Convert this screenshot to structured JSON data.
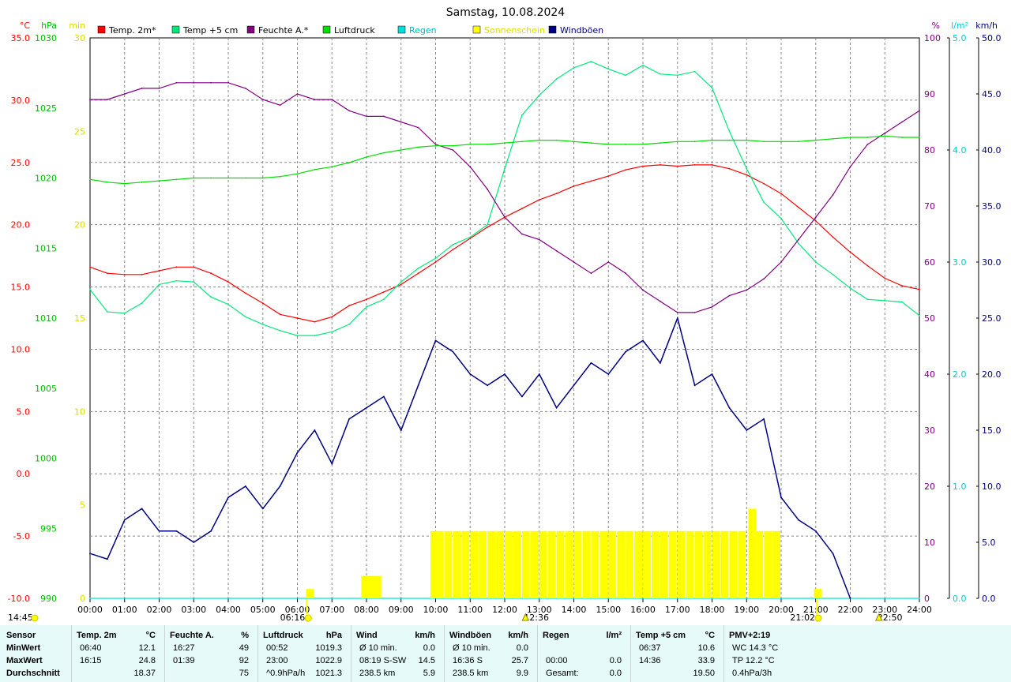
{
  "title": "Samstag, 10.08.2024",
  "legend": [
    {
      "label": "Temp. 2m*",
      "color": "#ff0000"
    },
    {
      "label": "Temp +5 cm",
      "color": "#00e87a"
    },
    {
      "label": "Feuchte A.*",
      "color": "#800080"
    },
    {
      "label": "Luftdruck",
      "color": "#00dd00"
    },
    {
      "label": "Regen",
      "color": "#00dddd"
    },
    {
      "label": "Sonnenschein",
      "color": "#ffff00"
    },
    {
      "label": "Windböen",
      "color": "#000080"
    }
  ],
  "axes": {
    "temp": {
      "unit": "°C",
      "ticks": [
        "35.0",
        "30.0",
        "25.0",
        "20.0",
        "15.0",
        "10.0",
        "5.0",
        "0.0",
        "-5.0",
        "-10.0"
      ],
      "color": "#ff0000"
    },
    "pressure": {
      "unit": "hPa",
      "ticks": [
        "1030",
        "1025",
        "1020",
        "1015",
        "1010",
        "1005",
        "1000",
        "995",
        "990"
      ],
      "color": "#00bb00"
    },
    "sun_min": {
      "unit": "min",
      "ticks": [
        "30",
        "25",
        "20",
        "15",
        "10",
        "5",
        "0"
      ],
      "color": "#dddd00"
    },
    "humidity": {
      "unit": "%",
      "ticks": [
        "100",
        "90",
        "80",
        "70",
        "60",
        "50",
        "40",
        "30",
        "20",
        "10",
        "0"
      ],
      "color": "#800080"
    },
    "rain": {
      "unit": "l/m²",
      "ticks": [
        "5.0",
        "4.0",
        "3.0",
        "2.0",
        "1.0",
        "0.0"
      ],
      "color": "#00cccc"
    },
    "wind": {
      "unit": "km/h",
      "ticks": [
        "50.0",
        "45.0",
        "40.0",
        "35.0",
        "30.0",
        "25.0",
        "20.0",
        "15.0",
        "10.0",
        "5.0",
        "0.0"
      ],
      "color": "#000080"
    },
    "time_ticks": [
      "00:00",
      "01:00",
      "02:00",
      "03:00",
      "04:00",
      "05:00",
      "06:00",
      "07:00",
      "08:00",
      "09:00",
      "10:00",
      "11:00",
      "12:00",
      "13:00",
      "14:00",
      "15:00",
      "16:00",
      "17:00",
      "18:00",
      "19:00",
      "20:00",
      "21:00",
      "22:00",
      "23:00",
      "24:00"
    ]
  },
  "time_markers": [
    {
      "label": "14:45",
      "hour": -1.0,
      "icon": "sun"
    },
    {
      "label": "06:16",
      "hour": 6.27,
      "icon": "sunrise"
    },
    {
      "label": "12:36",
      "hour": 12.6,
      "icon": "solar-noon"
    },
    {
      "label": "21:02",
      "hour": 21.03,
      "icon": "sunset"
    },
    {
      "label": "22:50",
      "hour": 22.83,
      "icon": "moon"
    }
  ],
  "chart_data": {
    "type": "line",
    "title": "Samstag, 10.08.2024",
    "xlim": [
      0,
      24
    ],
    "series": [
      {
        "name": "Temp. 2m*",
        "axis": "temp",
        "ylim": [
          -10,
          35
        ],
        "color": "#ff0000",
        "x": [
          0,
          0.5,
          1,
          1.5,
          2,
          2.5,
          3,
          3.5,
          4,
          4.5,
          5,
          5.5,
          6,
          6.5,
          7,
          7.5,
          8,
          8.5,
          9,
          9.5,
          10,
          10.5,
          11,
          11.5,
          12,
          12.5,
          13,
          13.5,
          14,
          14.5,
          15,
          15.5,
          16,
          16.5,
          17,
          17.5,
          18,
          18.5,
          19,
          19.5,
          20,
          20.5,
          21,
          21.5,
          22,
          22.5,
          23,
          23.5,
          24
        ],
        "y": [
          16.6,
          16.1,
          16.0,
          16.0,
          16.3,
          16.6,
          16.6,
          16.1,
          15.4,
          14.5,
          13.7,
          12.8,
          12.5,
          12.2,
          12.6,
          13.5,
          14.0,
          14.6,
          15.2,
          16.1,
          17.0,
          18.0,
          18.9,
          19.8,
          20.6,
          21.3,
          22.0,
          22.5,
          23.1,
          23.5,
          23.9,
          24.4,
          24.7,
          24.8,
          24.7,
          24.8,
          24.8,
          24.5,
          24.0,
          23.3,
          22.5,
          21.4,
          20.3,
          19.0,
          17.8,
          16.7,
          15.7,
          15.1,
          14.8
        ]
      },
      {
        "name": "Temp +5 cm",
        "axis": "temp",
        "ylim": [
          -10,
          35
        ],
        "color": "#00e87a",
        "x": [
          0,
          0.5,
          1,
          1.5,
          2,
          2.5,
          3,
          3.5,
          4,
          4.5,
          5,
          5.5,
          6,
          6.5,
          7,
          7.5,
          8,
          8.5,
          9,
          9.5,
          10,
          10.5,
          11,
          11.5,
          12,
          12.5,
          13,
          13.5,
          14,
          14.5,
          15,
          15.5,
          16,
          16.5,
          17,
          17.5,
          18,
          18.5,
          19,
          19.5,
          20,
          20.5,
          21,
          21.5,
          22,
          22.5,
          23,
          23.5,
          24
        ],
        "y": [
          14.8,
          13.0,
          12.9,
          13.7,
          15.2,
          15.5,
          15.4,
          14.2,
          13.6,
          12.6,
          12.0,
          11.5,
          11.1,
          11.1,
          11.4,
          12.0,
          13.4,
          14.0,
          15.4,
          16.5,
          17.3,
          18.4,
          19.0,
          20.0,
          24.5,
          28.8,
          30.4,
          31.7,
          32.6,
          33.1,
          32.5,
          32.0,
          32.8,
          32.1,
          32.0,
          32.3,
          31.0,
          27.5,
          24.5,
          21.8,
          20.5,
          18.5,
          17.0,
          16.0,
          14.9,
          14.0,
          13.9,
          13.8,
          12.7
        ]
      },
      {
        "name": "Feuchte A.*",
        "axis": "humidity",
        "ylim": [
          0,
          100
        ],
        "color": "#800080",
        "x": [
          0,
          0.5,
          1,
          1.5,
          2,
          2.5,
          3,
          3.5,
          4,
          4.5,
          5,
          5.5,
          6,
          6.5,
          7,
          7.5,
          8,
          8.5,
          9,
          9.5,
          10,
          10.5,
          11,
          11.5,
          12,
          12.5,
          13,
          13.5,
          14,
          14.5,
          15,
          15.5,
          16,
          16.5,
          17,
          17.5,
          18,
          18.5,
          19,
          19.5,
          20,
          20.5,
          21,
          21.5,
          22,
          22.5,
          23,
          23.5,
          24
        ],
        "y": [
          89,
          89,
          90,
          91,
          91,
          92,
          92,
          92,
          92,
          91,
          89,
          88,
          90,
          89,
          89,
          87,
          86,
          86,
          85,
          84,
          81,
          80,
          77,
          73,
          68,
          65,
          64,
          62,
          60,
          58,
          60,
          58,
          55,
          53,
          51,
          51,
          52,
          54,
          55,
          57,
          60,
          64,
          68,
          72,
          77,
          81,
          83,
          85,
          87
        ]
      },
      {
        "name": "Luftdruck",
        "axis": "pressure",
        "ylim": [
          990,
          1030
        ],
        "color": "#00dd00",
        "x": [
          0,
          0.5,
          1,
          1.5,
          2,
          2.5,
          3,
          3.5,
          4,
          4.5,
          5,
          5.5,
          6,
          6.5,
          7,
          7.5,
          8,
          8.5,
          9,
          9.5,
          10,
          10.5,
          11,
          11.5,
          12,
          12.5,
          13,
          13.5,
          14,
          14.5,
          15,
          15.5,
          16,
          16.5,
          17,
          17.5,
          18,
          18.5,
          19,
          19.5,
          20,
          20.5,
          21,
          21.5,
          22,
          22.5,
          23,
          23.5,
          24
        ],
        "y": [
          1019.9,
          1019.7,
          1019.6,
          1019.7,
          1019.8,
          1019.9,
          1020.0,
          1020.0,
          1020.0,
          1020.0,
          1020.0,
          1020.1,
          1020.3,
          1020.6,
          1020.8,
          1021.1,
          1021.5,
          1021.8,
          1022.0,
          1022.2,
          1022.3,
          1022.3,
          1022.4,
          1022.4,
          1022.5,
          1022.6,
          1022.7,
          1022.7,
          1022.6,
          1022.5,
          1022.4,
          1022.4,
          1022.4,
          1022.5,
          1022.6,
          1022.6,
          1022.7,
          1022.7,
          1022.7,
          1022.6,
          1022.6,
          1022.6,
          1022.7,
          1022.8,
          1022.9,
          1022.9,
          1023.0,
          1022.9,
          1022.9
        ]
      },
      {
        "name": "Regen",
        "axis": "rain",
        "ylim": [
          0,
          5
        ],
        "color": "#00dddd",
        "x": [
          0,
          24
        ],
        "y": [
          0.0,
          0.0
        ]
      },
      {
        "name": "Windböen",
        "axis": "wind",
        "ylim": [
          0,
          50
        ],
        "color": "#000080",
        "x": [
          0,
          0.5,
          1,
          1.5,
          2,
          2.5,
          3,
          3.5,
          4,
          4.5,
          5,
          5.5,
          6,
          6.5,
          7,
          7.5,
          8,
          8.5,
          9,
          9.5,
          10,
          10.5,
          11,
          11.5,
          12,
          12.5,
          13,
          13.5,
          14,
          14.5,
          15,
          15.5,
          16,
          16.5,
          17,
          17.5,
          18,
          18.5,
          19,
          19.5,
          20,
          20.5,
          21,
          21.5,
          22
        ],
        "y": [
          4.0,
          3.5,
          7.0,
          8.0,
          6.0,
          6.0,
          5.0,
          6.0,
          9.0,
          10.0,
          8.0,
          10.0,
          13.0,
          15.0,
          12.0,
          16.0,
          17.0,
          18.0,
          15.0,
          19.0,
          23.0,
          22.0,
          20.0,
          19.0,
          20.0,
          18.0,
          20.0,
          17.0,
          19.0,
          21.0,
          20.0,
          22.0,
          23.0,
          21.0,
          25.0,
          19.0,
          20.0,
          17.0,
          15.0,
          16.0,
          9.0,
          7.0,
          6.0,
          4.0,
          0.0
        ]
      },
      {
        "name": "Sonnenschein",
        "axis": "sun_min",
        "ylim": [
          0,
          30
        ],
        "color": "#ffff00",
        "type": "bar",
        "x": [
          6.25,
          7.85,
          8.05,
          8.2,
          9.85,
          10.0,
          10.25,
          10.5,
          10.75,
          11,
          11.25,
          11.5,
          11.75,
          12,
          12.25,
          12.5,
          12.75,
          13,
          13.25,
          13.5,
          13.75,
          14,
          14.25,
          14.5,
          14.75,
          15,
          15.25,
          15.5,
          15.75,
          16,
          16.25,
          16.5,
          16.75,
          17,
          17.25,
          17.5,
          17.75,
          18,
          18.25,
          18.5,
          18.75,
          19.05,
          19.25,
          19.5,
          19.75,
          20.95
        ],
        "y": [
          0.5,
          1.2,
          1.2,
          1.2,
          3.6,
          3.6,
          3.6,
          3.6,
          3.6,
          3.6,
          3.6,
          3.6,
          3.6,
          3.6,
          3.6,
          3.6,
          3.6,
          3.6,
          3.6,
          3.6,
          3.6,
          3.6,
          3.6,
          3.6,
          3.6,
          3.6,
          3.6,
          3.6,
          3.6,
          3.6,
          3.6,
          3.6,
          3.6,
          3.6,
          3.6,
          3.6,
          3.6,
          3.6,
          3.6,
          3.6,
          3.6,
          4.8,
          3.6,
          3.6,
          3.6,
          0.5
        ]
      }
    ]
  },
  "stats": {
    "row_labels": [
      "Sensor",
      "MinWert",
      "MaxWert",
      "Durchschnitt"
    ],
    "columns": [
      {
        "header": "Temp. 2m",
        "unit": "°C",
        "rows": [
          [
            "06:40",
            "12.1"
          ],
          [
            "16:15",
            "24.8"
          ],
          [
            "",
            "18.37"
          ]
        ]
      },
      {
        "header": "Feuchte A.",
        "unit": "%",
        "rows": [
          [
            "16:27",
            "49"
          ],
          [
            "01:39",
            "92"
          ],
          [
            "",
            "75"
          ]
        ]
      },
      {
        "header": "Luftdruck",
        "unit": "hPa",
        "rows": [
          [
            "00:52",
            "1019.3"
          ],
          [
            "23:00",
            "1022.9"
          ],
          [
            "^0.9hPa/h",
            "1021.3"
          ]
        ]
      },
      {
        "header": "Wind",
        "unit": "km/h",
        "rows": [
          [
            "Ø 10 min.",
            "0.0"
          ],
          [
            "08:19    S-SW",
            "14.5"
          ],
          [
            "238.5 km",
            "5.9"
          ]
        ]
      },
      {
        "header": "Windböen",
        "unit": "km/h",
        "rows": [
          [
            "Ø 10 min.",
            "0.0"
          ],
          [
            "16:36      S",
            "25.7"
          ],
          [
            "238.5 km",
            "9.9"
          ]
        ]
      },
      {
        "header": "Regen",
        "unit": "l/m²",
        "rows": [
          [
            "",
            ""
          ],
          [
            "00:00",
            "0.0"
          ],
          [
            "Gesamt:",
            "0.0"
          ]
        ]
      },
      {
        "header": "Temp +5 cm",
        "unit": "°C",
        "rows": [
          [
            "06:37",
            "10.6"
          ],
          [
            "14:36",
            "33.9"
          ],
          [
            "",
            "19.50"
          ]
        ]
      },
      {
        "header": "PMV+2:19",
        "unit": "",
        "rows": [
          [
            "WC 14.3 °C",
            ""
          ],
          [
            "TP 12.2 °C",
            ""
          ],
          [
            "0.4hPa/3h",
            ""
          ]
        ]
      }
    ]
  }
}
